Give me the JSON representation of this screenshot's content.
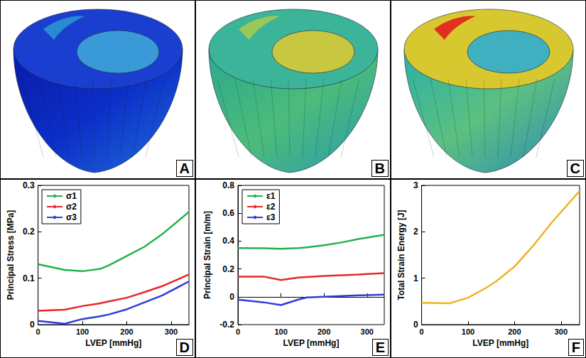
{
  "images": [
    {
      "label": "A"
    },
    {
      "label": "B"
    },
    {
      "label": "C"
    }
  ],
  "chart_data": [
    {
      "type": "line",
      "annotations": [
        "D"
      ],
      "x_label": "LVEP [mmHg]",
      "y_label": "Principal Stress [MPa]",
      "x": [
        0,
        60,
        100,
        140,
        160,
        200,
        240,
        280,
        340
      ],
      "series": [
        {
          "name": "σ1",
          "color": "#22b14c",
          "values": [
            0.13,
            0.118,
            0.115,
            0.12,
            0.128,
            0.148,
            0.168,
            0.195,
            0.243
          ]
        },
        {
          "name": "σ2",
          "color": "#e8262a",
          "values": [
            0.03,
            0.032,
            0.04,
            0.046,
            0.05,
            0.058,
            0.07,
            0.083,
            0.108
          ]
        },
        {
          "name": "σ3",
          "color": "#2d3ed8",
          "values": [
            0.008,
            0.002,
            0.012,
            0.018,
            0.022,
            0.033,
            0.048,
            0.063,
            0.093
          ]
        }
      ],
      "xlim": [
        0,
        340
      ],
      "xticks": [
        0,
        100,
        200,
        300
      ],
      "ylim": [
        0,
        0.3
      ],
      "yticks": [
        0,
        0.1,
        0.2,
        0.3
      ],
      "grid": false,
      "legend": "top-left"
    },
    {
      "type": "line",
      "annotations": [
        "E"
      ],
      "x_label": "LVEP [mmHg]",
      "y_label": "Principal Strain [m/m]",
      "x": [
        0,
        60,
        100,
        140,
        160,
        200,
        240,
        280,
        340
      ],
      "series": [
        {
          "name": "ε1",
          "color": "#22b14c",
          "values": [
            0.35,
            0.348,
            0.345,
            0.35,
            0.355,
            0.37,
            0.39,
            0.415,
            0.445
          ]
        },
        {
          "name": "ε2",
          "color": "#e8262a",
          "values": [
            0.145,
            0.145,
            0.12,
            0.138,
            0.142,
            0.15,
            0.155,
            0.16,
            0.17
          ]
        },
        {
          "name": "ε3",
          "color": "#2d3ed8",
          "values": [
            -0.02,
            -0.04,
            -0.06,
            -0.02,
            -0.005,
            0.0,
            0.005,
            0.01,
            0.015
          ]
        }
      ],
      "xlim": [
        0,
        340
      ],
      "xticks": [
        0,
        100,
        200,
        300
      ],
      "ylim": [
        -0.2,
        0.8
      ],
      "yticks": [
        -0.2,
        0,
        0.2,
        0.4,
        0.6,
        0.8
      ],
      "grid": false,
      "legend": "top-left"
    },
    {
      "type": "line",
      "annotations": [
        "F"
      ],
      "x_label": "LVEP [mmHg]",
      "y_label": "Total Strain Energy [J]",
      "x": [
        0,
        60,
        100,
        140,
        160,
        200,
        240,
        280,
        340
      ],
      "series": [
        {
          "color": "#f0b323",
          "values": [
            0.47,
            0.46,
            0.58,
            0.8,
            0.93,
            1.25,
            1.7,
            2.2,
            2.88
          ]
        }
      ],
      "xlim": [
        0,
        340
      ],
      "xticks": [
        0,
        100,
        200,
        300
      ],
      "ylim": [
        0,
        3
      ],
      "yticks": [
        0,
        1,
        2,
        3
      ],
      "grid": false
    }
  ]
}
